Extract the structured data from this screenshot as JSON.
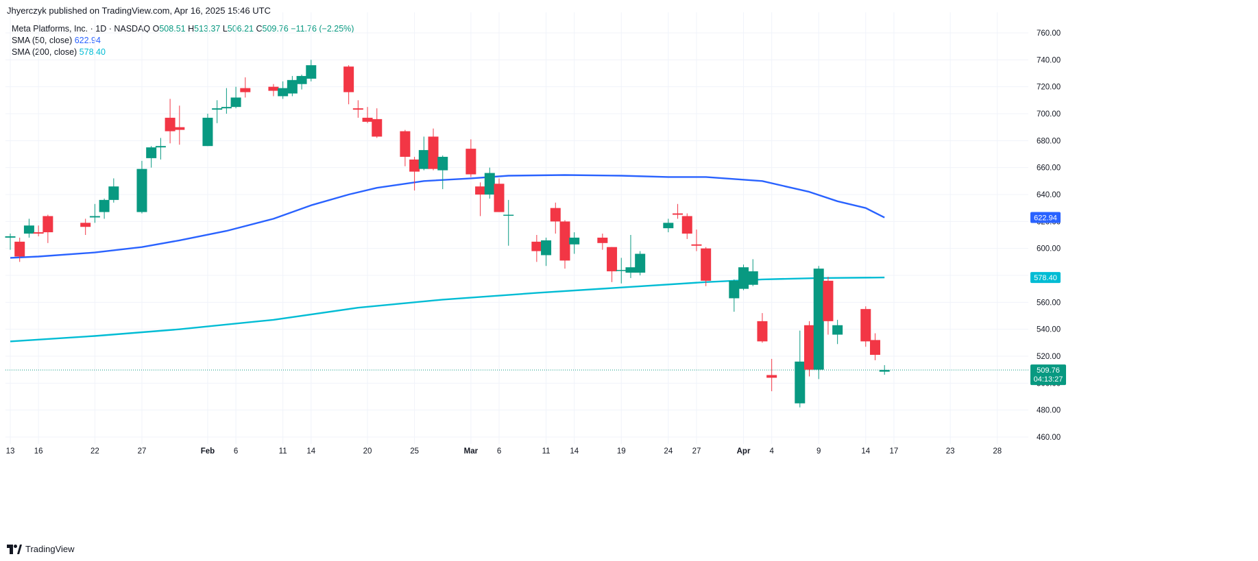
{
  "header": {
    "published": "Jhyerczyk published on TradingView.com, Apr 16, 2025 15:46 UTC"
  },
  "legend": {
    "symbol": "Meta Platforms, Inc. · 1D · NASDAQ",
    "o_label": "O",
    "o": "508.51",
    "h_label": "H",
    "h": "513.37",
    "l_label": "L",
    "l": "506.21",
    "c_label": "C",
    "c": "509.76",
    "change": "−11.76 (−2.25%)",
    "sma50_label": "SMA (50, close)",
    "sma50_value": "622.94",
    "sma200_label": "SMA (200, close)",
    "sma200_value": "578.40"
  },
  "footer": {
    "brand": "TradingView",
    "logo_icon": "tradingview-logo-icon"
  },
  "colors": {
    "up": "#089981",
    "down": "#f23645",
    "sma50": "#2962ff",
    "sma200": "#00bcd4",
    "grid": "#f0f3fa"
  },
  "chart_data": {
    "type": "candlestick",
    "title": "Meta Platforms, Inc. · 1D · NASDAQ",
    "ylim": [
      452,
      768
    ],
    "y_ticks": [
      460,
      480,
      500,
      520,
      540,
      560,
      580,
      600,
      620,
      640,
      660,
      680,
      700,
      720,
      740,
      760
    ],
    "x_range": [
      "2025-01-13",
      "2025-05-01"
    ],
    "x_ticks": [
      {
        "date": "2025-01-13",
        "label": "13"
      },
      {
        "date": "2025-01-16",
        "label": "16"
      },
      {
        "date": "2025-01-22",
        "label": "22"
      },
      {
        "date": "2025-01-27",
        "label": "27"
      },
      {
        "date": "2025-02-03",
        "label": "Feb"
      },
      {
        "date": "2025-02-06",
        "label": "6"
      },
      {
        "date": "2025-02-11",
        "label": "11"
      },
      {
        "date": "2025-02-14",
        "label": "14"
      },
      {
        "date": "2025-02-20",
        "label": "20"
      },
      {
        "date": "2025-02-25",
        "label": "25"
      },
      {
        "date": "2025-03-03",
        "label": "Mar"
      },
      {
        "date": "2025-03-06",
        "label": "6"
      },
      {
        "date": "2025-03-11",
        "label": "11"
      },
      {
        "date": "2025-03-14",
        "label": "14"
      },
      {
        "date": "2025-03-19",
        "label": "19"
      },
      {
        "date": "2025-03-24",
        "label": "24"
      },
      {
        "date": "2025-03-27",
        "label": "27"
      },
      {
        "date": "2025-04-01",
        "label": "Apr"
      },
      {
        "date": "2025-04-04",
        "label": "4"
      },
      {
        "date": "2025-04-09",
        "label": "9"
      },
      {
        "date": "2025-04-14",
        "label": "14"
      },
      {
        "date": "2025-04-17",
        "label": "17"
      },
      {
        "date": "2025-04-23",
        "label": "23"
      },
      {
        "date": "2025-04-28",
        "label": "28"
      }
    ],
    "candles": [
      {
        "date": "2025-01-13",
        "o": 608,
        "h": 611,
        "l": 599,
        "c": 609
      },
      {
        "date": "2025-01-14",
        "o": 605,
        "h": 608,
        "l": 590,
        "c": 594
      },
      {
        "date": "2025-01-15",
        "o": 611,
        "h": 622,
        "l": 608,
        "c": 617
      },
      {
        "date": "2025-01-16",
        "o": 612,
        "h": 617,
        "l": 609,
        "c": 611
      },
      {
        "date": "2025-01-17",
        "o": 624,
        "h": 625,
        "l": 604,
        "c": 612
      },
      {
        "date": "2025-01-21",
        "o": 619,
        "h": 622,
        "l": 610,
        "c": 616
      },
      {
        "date": "2025-01-22",
        "o": 623,
        "h": 633,
        "l": 619,
        "c": 624
      },
      {
        "date": "2025-01-23",
        "o": 627,
        "h": 637,
        "l": 622,
        "c": 636
      },
      {
        "date": "2025-01-24",
        "o": 636,
        "h": 652,
        "l": 634,
        "c": 646
      },
      {
        "date": "2025-01-27",
        "o": 627,
        "h": 665,
        "l": 626,
        "c": 659
      },
      {
        "date": "2025-01-28",
        "o": 667,
        "h": 676,
        "l": 660,
        "c": 675
      },
      {
        "date": "2025-01-29",
        "o": 675,
        "h": 682,
        "l": 666,
        "c": 676
      },
      {
        "date": "2025-01-30",
        "o": 697,
        "h": 711,
        "l": 678,
        "c": 687
      },
      {
        "date": "2025-01-31",
        "o": 690,
        "h": 706,
        "l": 677,
        "c": 688
      },
      {
        "date": "2025-02-03",
        "o": 676,
        "h": 700,
        "l": 676,
        "c": 697
      },
      {
        "date": "2025-02-04",
        "o": 703,
        "h": 710,
        "l": 693,
        "c": 704
      },
      {
        "date": "2025-02-05",
        "o": 704,
        "h": 719,
        "l": 700,
        "c": 705
      },
      {
        "date": "2025-02-06",
        "o": 705,
        "h": 720,
        "l": 704,
        "c": 712
      },
      {
        "date": "2025-02-07",
        "o": 719,
        "h": 727,
        "l": 712,
        "c": 716
      },
      {
        "date": "2025-02-10",
        "o": 720,
        "h": 722,
        "l": 713,
        "c": 717
      },
      {
        "date": "2025-02-11",
        "o": 713,
        "h": 724,
        "l": 711,
        "c": 719
      },
      {
        "date": "2025-02-12",
        "o": 715,
        "h": 728,
        "l": 713,
        "c": 725
      },
      {
        "date": "2025-02-13",
        "o": 722,
        "h": 729,
        "l": 718,
        "c": 728
      },
      {
        "date": "2025-02-14",
        "o": 726,
        "h": 740,
        "l": 724,
        "c": 736
      },
      {
        "date": "2025-02-18",
        "o": 735,
        "h": 736,
        "l": 707,
        "c": 716
      },
      {
        "date": "2025-02-19",
        "o": 704,
        "h": 710,
        "l": 697,
        "c": 703
      },
      {
        "date": "2025-02-20",
        "o": 697,
        "h": 705,
        "l": 693,
        "c": 694
      },
      {
        "date": "2025-02-21",
        "o": 696,
        "h": 704,
        "l": 682,
        "c": 683
      },
      {
        "date": "2025-02-24",
        "o": 687,
        "h": 688,
        "l": 661,
        "c": 668
      },
      {
        "date": "2025-02-25",
        "o": 666,
        "h": 668,
        "l": 643,
        "c": 657
      },
      {
        "date": "2025-02-26",
        "o": 659,
        "h": 683,
        "l": 658,
        "c": 673
      },
      {
        "date": "2025-02-27",
        "o": 683,
        "h": 689,
        "l": 658,
        "c": 659
      },
      {
        "date": "2025-02-28",
        "o": 658,
        "h": 669,
        "l": 644,
        "c": 668
      },
      {
        "date": "2025-03-03",
        "o": 674,
        "h": 681,
        "l": 653,
        "c": 655
      },
      {
        "date": "2025-03-04",
        "o": 646,
        "h": 649,
        "l": 624,
        "c": 640
      },
      {
        "date": "2025-03-05",
        "o": 640,
        "h": 660,
        "l": 637,
        "c": 656
      },
      {
        "date": "2025-03-06",
        "o": 648,
        "h": 652,
        "l": 627,
        "c": 627
      },
      {
        "date": "2025-03-07",
        "o": 625,
        "h": 636,
        "l": 602,
        "c": 625
      },
      {
        "date": "2025-03-10",
        "o": 605,
        "h": 610,
        "l": 590,
        "c": 598
      },
      {
        "date": "2025-03-11",
        "o": 595,
        "h": 608,
        "l": 587,
        "c": 606
      },
      {
        "date": "2025-03-12",
        "o": 630,
        "h": 634,
        "l": 611,
        "c": 620
      },
      {
        "date": "2025-03-13",
        "o": 620,
        "h": 621,
        "l": 585,
        "c": 591
      },
      {
        "date": "2025-03-14",
        "o": 603,
        "h": 612,
        "l": 596,
        "c": 608
      },
      {
        "date": "2025-03-17",
        "o": 608,
        "h": 611,
        "l": 599,
        "c": 604
      },
      {
        "date": "2025-03-18",
        "o": 601,
        "h": 601,
        "l": 575,
        "c": 583
      },
      {
        "date": "2025-03-19",
        "o": 584,
        "h": 593,
        "l": 574,
        "c": 584
      },
      {
        "date": "2025-03-20",
        "o": 582,
        "h": 610,
        "l": 578,
        "c": 586
      },
      {
        "date": "2025-03-21",
        "o": 582,
        "h": 598,
        "l": 580,
        "c": 596
      },
      {
        "date": "2025-03-24",
        "o": 615,
        "h": 622,
        "l": 612,
        "c": 619
      },
      {
        "date": "2025-03-25",
        "o": 626,
        "h": 633,
        "l": 622,
        "c": 625
      },
      {
        "date": "2025-03-26",
        "o": 624,
        "h": 626,
        "l": 607,
        "c": 611
      },
      {
        "date": "2025-03-27",
        "o": 603,
        "h": 614,
        "l": 598,
        "c": 602
      },
      {
        "date": "2025-03-28",
        "o": 600,
        "h": 601,
        "l": 572,
        "c": 576
      },
      {
        "date": "2025-03-31",
        "o": 563,
        "h": 577,
        "l": 553,
        "c": 576
      },
      {
        "date": "2025-04-01",
        "o": 570,
        "h": 588,
        "l": 569,
        "c": 586
      },
      {
        "date": "2025-04-02",
        "o": 573,
        "h": 592,
        "l": 572,
        "c": 583
      },
      {
        "date": "2025-04-03",
        "o": 546,
        "h": 552,
        "l": 530,
        "c": 531
      },
      {
        "date": "2025-04-04",
        "o": 506,
        "h": 518,
        "l": 494,
        "c": 504
      },
      {
        "date": "2025-04-07",
        "o": 485,
        "h": 539,
        "l": 482,
        "c": 516
      },
      {
        "date": "2025-04-08",
        "o": 543,
        "h": 546,
        "l": 505,
        "c": 510
      },
      {
        "date": "2025-04-09",
        "o": 510,
        "h": 587,
        "l": 503,
        "c": 585
      },
      {
        "date": "2025-04-10",
        "o": 576,
        "h": 579,
        "l": 536,
        "c": 546
      },
      {
        "date": "2025-04-11",
        "o": 536,
        "h": 547,
        "l": 529,
        "c": 543
      },
      {
        "date": "2025-04-14",
        "o": 555,
        "h": 557,
        "l": 527,
        "c": 531
      },
      {
        "date": "2025-04-15",
        "o": 532,
        "h": 537,
        "l": 517,
        "c": 521
      },
      {
        "date": "2025-04-16",
        "o": 508.51,
        "h": 513.37,
        "l": 506.21,
        "c": 509.76
      }
    ],
    "series": [
      {
        "name": "SMA (50, close)",
        "color": "#2962ff",
        "last_value": 622.94,
        "points": [
          [
            "2025-01-13",
            593
          ],
          [
            "2025-01-16",
            594
          ],
          [
            "2025-01-22",
            597
          ],
          [
            "2025-01-27",
            601
          ],
          [
            "2025-01-31",
            606
          ],
          [
            "2025-02-05",
            613
          ],
          [
            "2025-02-10",
            622
          ],
          [
            "2025-02-14",
            632
          ],
          [
            "2025-02-18",
            640
          ],
          [
            "2025-02-21",
            645
          ],
          [
            "2025-02-26",
            650
          ],
          [
            "2025-03-03",
            652
          ],
          [
            "2025-03-07",
            654
          ],
          [
            "2025-03-13",
            654.5
          ],
          [
            "2025-03-19",
            654
          ],
          [
            "2025-03-24",
            653
          ],
          [
            "2025-03-28",
            653
          ],
          [
            "2025-04-03",
            650
          ],
          [
            "2025-04-08",
            642
          ],
          [
            "2025-04-11",
            635
          ],
          [
            "2025-04-14",
            630
          ],
          [
            "2025-04-16",
            622.94
          ]
        ]
      },
      {
        "name": "SMA (200, close)",
        "color": "#00bcd4",
        "last_value": 578.4,
        "points": [
          [
            "2025-01-13",
            531
          ],
          [
            "2025-01-22",
            535
          ],
          [
            "2025-01-31",
            540
          ],
          [
            "2025-02-10",
            547
          ],
          [
            "2025-02-19",
            556
          ],
          [
            "2025-02-28",
            562
          ],
          [
            "2025-03-10",
            567
          ],
          [
            "2025-03-19",
            571
          ],
          [
            "2025-03-28",
            575
          ],
          [
            "2025-04-03",
            577
          ],
          [
            "2025-04-09",
            578
          ],
          [
            "2025-04-16",
            578.4
          ]
        ]
      }
    ],
    "last_price": {
      "value": "509.76",
      "countdown": "04:13:27",
      "color": "#089981"
    }
  }
}
